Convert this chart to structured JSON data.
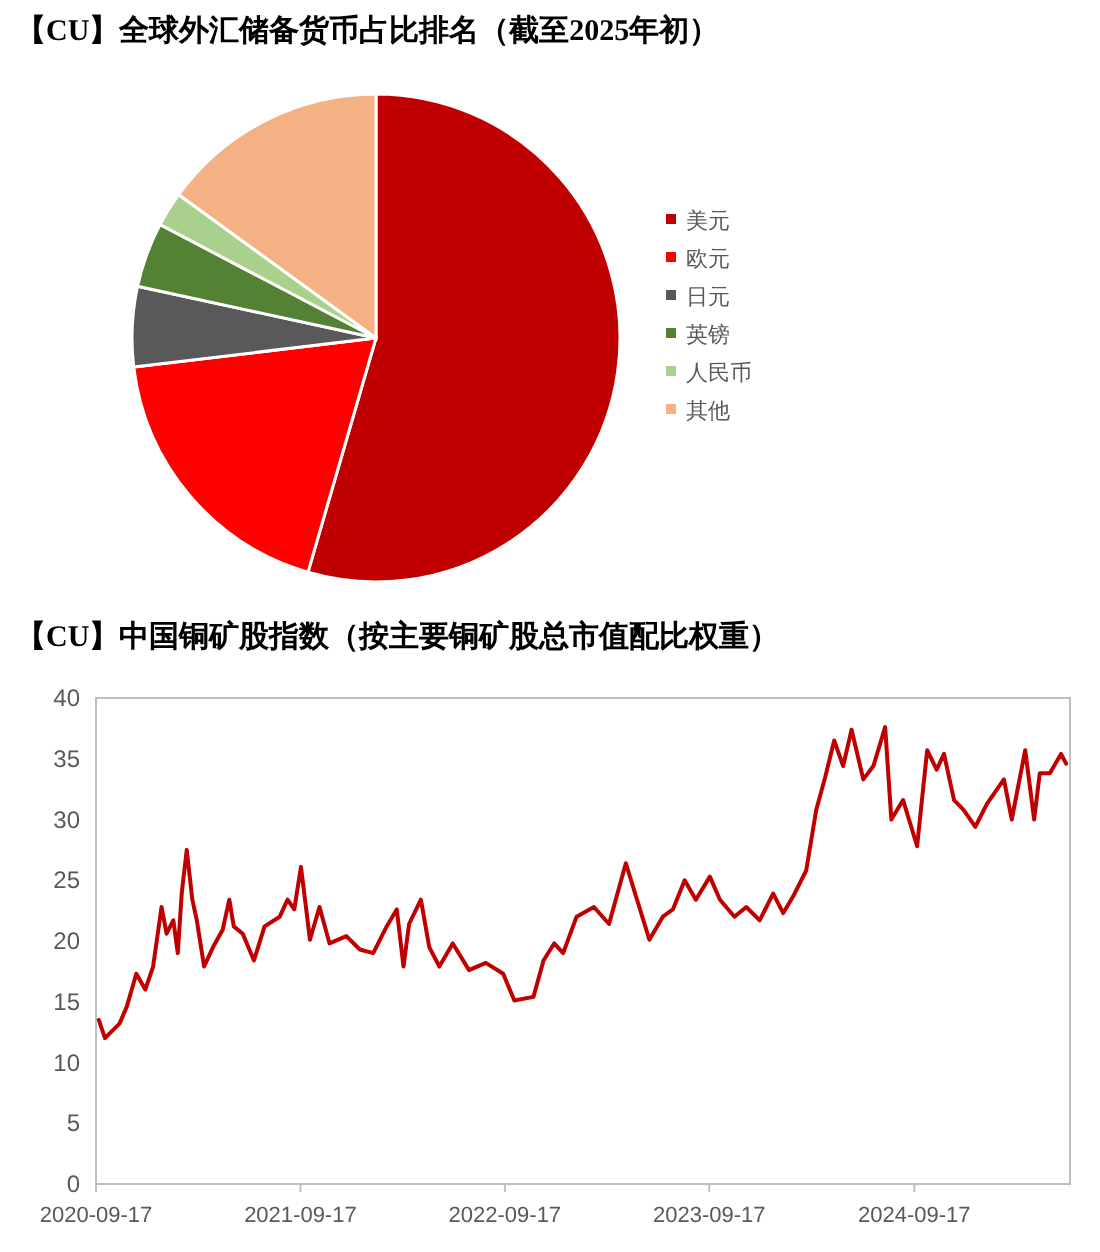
{
  "chart_data": [
    {
      "type": "pie",
      "title": "【CU】全球外汇储备货币占比排名（截至2025年初）",
      "categories": [
        "美元",
        "欧元",
        "日元",
        "英镑",
        "人民币",
        "其他"
      ],
      "values": [
        54.5,
        18.6,
        5.3,
        4.3,
        2.3,
        15.0
      ],
      "colors": [
        "#c00000",
        "#ff0000",
        "#595959",
        "#548235",
        "#a9d18e",
        "#f4b183"
      ],
      "legend": "right"
    },
    {
      "type": "line",
      "title": "【CU】中国铜矿股指数（按主要铜矿股总市值配比权重）",
      "xlim": [
        "2020-09-17",
        "2025-06-22"
      ],
      "xticks": [
        "2020-09-17",
        "2021-09-17",
        "2022-09-17",
        "2023-09-17",
        "2024-09-17"
      ],
      "ylim": [
        0,
        40
      ],
      "yticks": [
        0,
        5,
        10,
        15,
        20,
        25,
        30,
        35,
        40
      ],
      "x": [
        "2020-09-22",
        "2020-10-03",
        "2020-10-29",
        "2020-11-11",
        "2020-11-28",
        "2020-12-14",
        "2020-12-28",
        "2021-01-12",
        "2021-01-21",
        "2021-02-02",
        "2021-02-10",
        "2021-02-17",
        "2021-02-26",
        "2021-03-08",
        "2021-03-16",
        "2021-03-29",
        "2021-04-14",
        "2021-05-01",
        "2021-05-13",
        "2021-05-21",
        "2021-06-06",
        "2021-06-26",
        "2021-07-15",
        "2021-08-11",
        "2021-08-25",
        "2021-09-06",
        "2021-09-18",
        "2021-10-04",
        "2021-10-21",
        "2021-11-08",
        "2021-12-08",
        "2022-01-01",
        "2022-01-25",
        "2022-02-18",
        "2022-03-08",
        "2022-03-20",
        "2022-03-30",
        "2022-04-20",
        "2022-05-05",
        "2022-05-23",
        "2022-06-16",
        "2022-07-15",
        "2022-08-14",
        "2022-09-14",
        "2022-10-04",
        "2022-11-07",
        "2022-11-25",
        "2022-12-14",
        "2022-12-30",
        "2023-01-23",
        "2023-02-23",
        "2023-03-22",
        "2023-04-21",
        "2023-05-09",
        "2023-06-02",
        "2023-06-26",
        "2023-07-14",
        "2023-08-04",
        "2023-08-24",
        "2023-09-18",
        "2023-10-06",
        "2023-11-01",
        "2023-11-22",
        "2023-12-16",
        "2024-01-09",
        "2024-01-27",
        "2024-02-14",
        "2024-03-08",
        "2024-03-26",
        "2024-04-11",
        "2024-04-27",
        "2024-05-13",
        "2024-05-28",
        "2024-06-18",
        "2024-07-06",
        "2024-07-27",
        "2024-08-07",
        "2024-08-28",
        "2024-09-22",
        "2024-10-10",
        "2024-10-27",
        "2024-11-09",
        "2024-11-27",
        "2024-12-14",
        "2025-01-04",
        "2025-01-25",
        "2025-02-24",
        "2025-03-10",
        "2025-04-03",
        "2025-04-19",
        "2025-04-29",
        "2025-05-17",
        "2025-06-06",
        "2025-06-15"
      ],
      "series": [
        {
          "color": "#c00000",
          "values": [
            13.5,
            12.0,
            13.2,
            14.6,
            17.3,
            16.0,
            17.9,
            22.8,
            20.6,
            21.7,
            19.0,
            23.9,
            27.5,
            23.4,
            21.7,
            17.9,
            19.5,
            20.9,
            23.4,
            21.2,
            20.6,
            18.4,
            21.2,
            22.0,
            23.4,
            22.6,
            26.1,
            20.1,
            22.8,
            19.8,
            20.4,
            19.3,
            19.0,
            21.2,
            22.6,
            17.9,
            21.4,
            23.4,
            19.5,
            17.9,
            19.8,
            17.6,
            18.2,
            17.3,
            15.1,
            15.4,
            18.4,
            19.8,
            19.0,
            22.0,
            22.8,
            21.4,
            26.4,
            23.7,
            20.1,
            22.0,
            22.6,
            25.0,
            23.4,
            25.3,
            23.4,
            22.0,
            22.8,
            21.7,
            23.9,
            22.3,
            23.7,
            25.8,
            30.8,
            33.5,
            36.5,
            34.4,
            37.4,
            33.3,
            34.4,
            37.6,
            30.0,
            31.6,
            27.8,
            35.7,
            34.1,
            35.4,
            31.6,
            30.8,
            29.4,
            31.3,
            33.3,
            30.0,
            35.7,
            30.0,
            33.8,
            33.8,
            35.4,
            34.6
          ]
        }
      ]
    }
  ]
}
